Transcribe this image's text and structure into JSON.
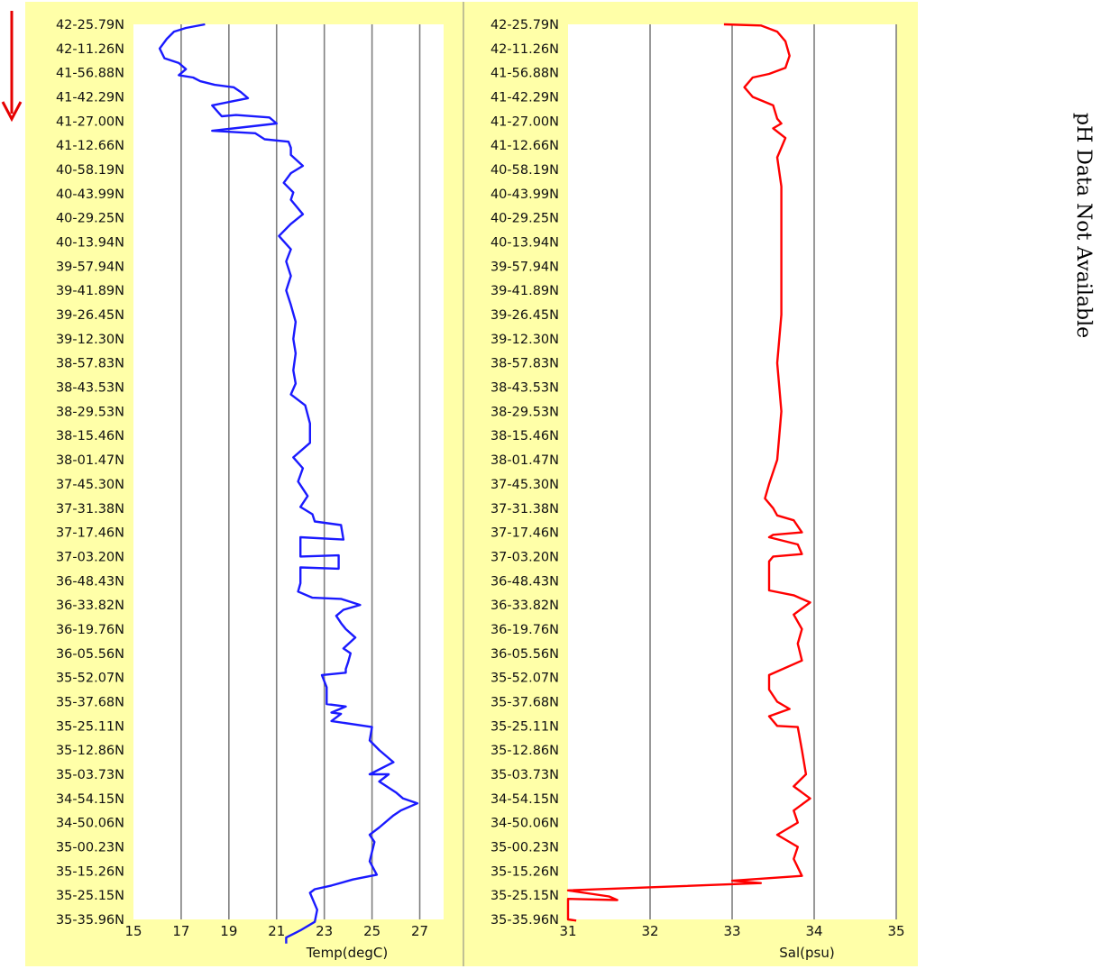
{
  "direction_arrow": {
    "icon": "down-arrow-icon",
    "color": "#e60000"
  },
  "ph_panel": {
    "text": "pH Data Not Available"
  },
  "latitude_labels": [
    "42-25.79N",
    "42-11.26N",
    "41-56.88N",
    "41-42.29N",
    "41-27.00N",
    "41-12.66N",
    "40-58.19N",
    "40-43.99N",
    "40-29.25N",
    "40-13.94N",
    "39-57.94N",
    "39-41.89N",
    "39-26.45N",
    "39-12.30N",
    "38-57.83N",
    "38-43.53N",
    "38-29.53N",
    "38-15.46N",
    "38-01.47N",
    "37-45.30N",
    "37-31.38N",
    "37-17.46N",
    "37-03.20N",
    "36-48.43N",
    "36-33.82N",
    "36-19.76N",
    "36-05.56N",
    "35-52.07N",
    "35-37.68N",
    "35-25.11N",
    "35-12.86N",
    "35-03.73N",
    "34-54.15N",
    "34-50.06N",
    "35-00.23N",
    "35-15.26N",
    "35-25.15N",
    "35-35.96N"
  ],
  "chart_data": [
    {
      "type": "line",
      "xlabel": "Temp(degC)",
      "xlim": [
        15,
        28
      ],
      "xticks": [
        "15",
        "17",
        "19",
        "21",
        "23",
        "25",
        "27"
      ],
      "ylabel": "",
      "categories_ref": "latitude_labels",
      "grid": true,
      "series": [
        {
          "color": "#1a1aff",
          "points": [
            [
              18.0,
              0.0
            ],
            [
              17.2,
              0.15
            ],
            [
              16.7,
              0.3
            ],
            [
              16.4,
              0.6
            ],
            [
              16.1,
              1.0
            ],
            [
              16.3,
              1.4
            ],
            [
              16.9,
              1.6
            ],
            [
              17.2,
              1.85
            ],
            [
              16.9,
              2.1
            ],
            [
              17.5,
              2.2
            ],
            [
              17.8,
              2.35
            ],
            [
              18.4,
              2.5
            ],
            [
              19.2,
              2.6
            ],
            [
              19.5,
              2.8
            ],
            [
              19.8,
              3.05
            ],
            [
              18.3,
              3.35
            ],
            [
              18.7,
              3.8
            ],
            [
              19.3,
              3.75
            ],
            [
              20.7,
              3.85
            ],
            [
              21.0,
              4.1
            ],
            [
              18.3,
              4.4
            ],
            [
              20.1,
              4.5
            ],
            [
              20.5,
              4.75
            ],
            [
              21.5,
              4.85
            ],
            [
              21.6,
              5.1
            ],
            [
              21.6,
              5.4
            ],
            [
              22.1,
              5.85
            ],
            [
              21.6,
              6.15
            ],
            [
              21.3,
              6.55
            ],
            [
              21.7,
              6.95
            ],
            [
              21.6,
              7.25
            ],
            [
              22.1,
              7.85
            ],
            [
              21.6,
              8.25
            ],
            [
              21.1,
              8.75
            ],
            [
              21.6,
              9.3
            ],
            [
              21.4,
              9.8
            ],
            [
              21.6,
              10.4
            ],
            [
              21.4,
              11.0
            ],
            [
              21.6,
              11.6
            ],
            [
              21.8,
              12.3
            ],
            [
              21.7,
              13.0
            ],
            [
              21.8,
              13.6
            ],
            [
              21.7,
              14.3
            ],
            [
              21.8,
              14.85
            ],
            [
              21.6,
              15.3
            ],
            [
              22.2,
              15.75
            ],
            [
              22.4,
              16.5
            ],
            [
              22.4,
              17.3
            ],
            [
              21.7,
              17.9
            ],
            [
              22.1,
              18.35
            ],
            [
              21.9,
              18.9
            ],
            [
              22.3,
              19.5
            ],
            [
              22.0,
              19.95
            ],
            [
              22.5,
              20.25
            ],
            [
              22.6,
              20.55
            ],
            [
              23.7,
              20.7
            ],
            [
              23.8,
              21.3
            ],
            [
              22.0,
              21.2
            ],
            [
              22.0,
              22.0
            ],
            [
              23.6,
              21.95
            ],
            [
              23.6,
              22.5
            ],
            [
              22.0,
              22.45
            ],
            [
              22.0,
              23.1
            ],
            [
              21.9,
              23.45
            ],
            [
              22.5,
              23.7
            ],
            [
              23.7,
              23.75
            ],
            [
              24.5,
              24.0
            ],
            [
              23.8,
              24.2
            ],
            [
              23.5,
              24.45
            ],
            [
              23.7,
              24.75
            ],
            [
              23.9,
              25.0
            ],
            [
              24.3,
              25.35
            ],
            [
              23.8,
              25.8
            ],
            [
              24.1,
              26.0
            ],
            [
              24.0,
              26.35
            ],
            [
              23.9,
              26.65
            ],
            [
              23.9,
              26.8
            ],
            [
              22.9,
              26.9
            ],
            [
              23.1,
              27.4
            ],
            [
              23.1,
              28.1
            ],
            [
              23.9,
              28.2
            ],
            [
              23.3,
              28.45
            ],
            [
              23.7,
              28.5
            ],
            [
              23.3,
              28.8
            ],
            [
              25.0,
              29.05
            ],
            [
              24.9,
              29.6
            ],
            [
              25.3,
              30.0
            ],
            [
              25.9,
              30.5
            ],
            [
              24.9,
              31.0
            ],
            [
              25.7,
              31.0
            ],
            [
              25.3,
              31.3
            ],
            [
              26.0,
              31.75
            ],
            [
              26.3,
              32.0
            ],
            [
              26.9,
              32.2
            ],
            [
              26.2,
              32.5
            ],
            [
              25.9,
              32.7
            ],
            [
              25.3,
              33.2
            ],
            [
              24.9,
              33.5
            ],
            [
              25.1,
              33.8
            ],
            [
              24.9,
              34.6
            ],
            [
              25.2,
              35.15
            ],
            [
              24.2,
              35.35
            ],
            [
              23.3,
              35.6
            ],
            [
              22.6,
              35.75
            ],
            [
              22.4,
              35.9
            ],
            [
              22.7,
              36.6
            ],
            [
              22.6,
              37.1
            ],
            [
              22.0,
              37.45
            ],
            [
              21.8,
              37.55
            ],
            [
              21.4,
              37.75
            ],
            [
              21.4,
              38.0
            ]
          ]
        }
      ]
    },
    {
      "type": "line",
      "xlabel": "Sal(psu)",
      "xlim": [
        31,
        35
      ],
      "xticks": [
        "31",
        "32",
        "33",
        "34",
        "35"
      ],
      "ylabel": "",
      "categories_ref": "latitude_labels",
      "grid": true,
      "series": [
        {
          "color": "#ff0000",
          "points": [
            [
              32.9,
              0.0
            ],
            [
              33.35,
              0.05
            ],
            [
              33.55,
              0.3
            ],
            [
              33.65,
              0.7
            ],
            [
              33.7,
              1.3
            ],
            [
              33.65,
              1.8
            ],
            [
              33.45,
              2.05
            ],
            [
              33.25,
              2.2
            ],
            [
              33.15,
              2.6
            ],
            [
              33.25,
              3.0
            ],
            [
              33.5,
              3.35
            ],
            [
              33.55,
              3.9
            ],
            [
              33.6,
              4.1
            ],
            [
              33.5,
              4.3
            ],
            [
              33.65,
              4.7
            ],
            [
              33.55,
              5.5
            ],
            [
              33.6,
              6.7
            ],
            [
              33.6,
              8.5
            ],
            [
              33.6,
              10.0
            ],
            [
              33.6,
              12.0
            ],
            [
              33.55,
              14.0
            ],
            [
              33.6,
              16.0
            ],
            [
              33.55,
              18.0
            ],
            [
              33.45,
              19.0
            ],
            [
              33.4,
              19.6
            ],
            [
              33.5,
              20.0
            ],
            [
              33.55,
              20.3
            ],
            [
              33.75,
              20.5
            ],
            [
              33.85,
              21.0
            ],
            [
              33.5,
              21.1
            ],
            [
              33.45,
              21.2
            ],
            [
              33.8,
              21.5
            ],
            [
              33.85,
              21.9
            ],
            [
              33.5,
              22.0
            ],
            [
              33.45,
              22.2
            ],
            [
              33.45,
              23.4
            ],
            [
              33.75,
              23.6
            ],
            [
              33.95,
              23.9
            ],
            [
              33.75,
              24.4
            ],
            [
              33.85,
              25.0
            ],
            [
              33.8,
              25.6
            ],
            [
              33.85,
              26.3
            ],
            [
              33.45,
              26.9
            ],
            [
              33.45,
              27.5
            ],
            [
              33.55,
              28.0
            ],
            [
              33.7,
              28.3
            ],
            [
              33.45,
              28.6
            ],
            [
              33.55,
              29.0
            ],
            [
              33.8,
              29.05
            ],
            [
              33.85,
              30.0
            ],
            [
              33.9,
              31.0
            ],
            [
              33.75,
              31.5
            ],
            [
              33.95,
              32.0
            ],
            [
              33.75,
              32.5
            ],
            [
              33.8,
              33.0
            ],
            [
              33.55,
              33.5
            ],
            [
              33.8,
              34.0
            ],
            [
              33.75,
              34.5
            ],
            [
              33.85,
              35.2
            ],
            [
              33.0,
              35.4
            ],
            [
              33.35,
              35.5
            ],
            [
              31.0,
              35.8
            ],
            [
              31.5,
              36.05
            ],
            [
              31.6,
              36.2
            ],
            [
              31.0,
              36.15
            ],
            [
              31.0,
              37.0
            ],
            [
              31.1,
              37.05
            ]
          ]
        }
      ]
    }
  ]
}
